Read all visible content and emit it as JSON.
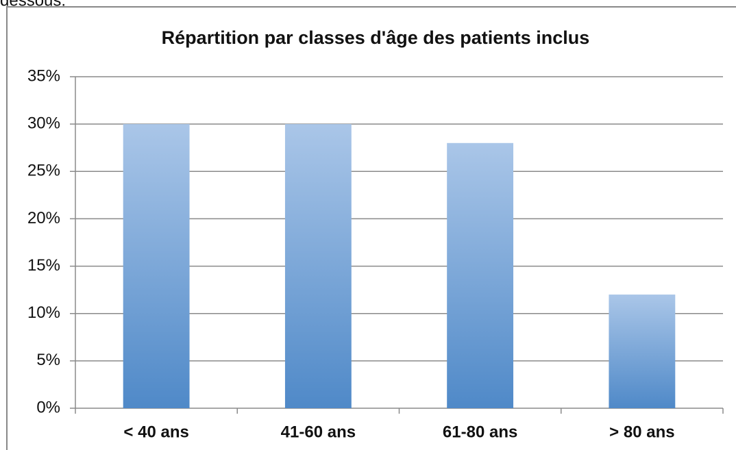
{
  "caption_fragment": "dessous.",
  "chart_data": {
    "type": "bar",
    "title": "Répartition par classes d'âge des patients inclus",
    "categories": [
      "< 40 ans",
      "41-60 ans",
      "61-80 ans",
      "> 80 ans"
    ],
    "values": [
      30,
      30,
      28,
      12
    ],
    "gradient": [
      "#aac6e8",
      "#4f89c8"
    ],
    "ylim": [
      0,
      35
    ],
    "yticks": [
      {
        "value": 0,
        "label": "0%"
      },
      {
        "value": 5,
        "label": "5%"
      },
      {
        "value": 10,
        "label": "10%"
      },
      {
        "value": 15,
        "label": "15%"
      },
      {
        "value": 20,
        "label": "20%"
      },
      {
        "value": 25,
        "label": "25%"
      },
      {
        "value": 30,
        "label": "30%"
      },
      {
        "value": 35,
        "label": "35%"
      }
    ],
    "grid": true
  }
}
